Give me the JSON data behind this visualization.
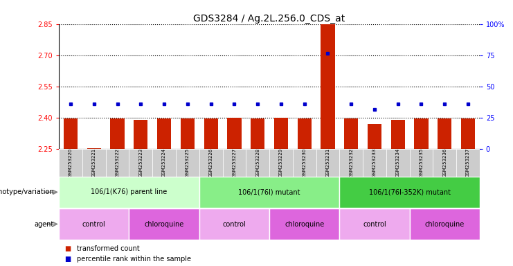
{
  "title": "GDS3284 / Ag.2L.256.0_CDS_at",
  "samples": [
    "GSM253220",
    "GSM253221",
    "GSM253222",
    "GSM253223",
    "GSM253224",
    "GSM253225",
    "GSM253226",
    "GSM253227",
    "GSM253228",
    "GSM253229",
    "GSM253230",
    "GSM253231",
    "GSM253232",
    "GSM253233",
    "GSM253234",
    "GSM253235",
    "GSM253236",
    "GSM253237"
  ],
  "bar_values": [
    2.395,
    2.255,
    2.395,
    2.39,
    2.395,
    2.395,
    2.395,
    2.4,
    2.395,
    2.4,
    2.395,
    2.87,
    2.395,
    2.37,
    2.39,
    2.395,
    2.395,
    2.395
  ],
  "dot_values": [
    2.465,
    2.465,
    2.465,
    2.465,
    2.465,
    2.465,
    2.465,
    2.465,
    2.465,
    2.465,
    2.465,
    2.71,
    2.465,
    2.44,
    2.465,
    2.465,
    2.465,
    2.465
  ],
  "ymin": 2.25,
  "ymax": 2.85,
  "yticks": [
    2.25,
    2.4,
    2.55,
    2.7,
    2.85
  ],
  "right_yticks": [
    0,
    25,
    50,
    75,
    100
  ],
  "bar_color": "#cc2200",
  "dot_color": "#0000cc",
  "genotype_groups": [
    {
      "label": "106/1(K76) parent line",
      "start": 0,
      "end": 5,
      "color": "#ccffcc"
    },
    {
      "label": "106/1(76I) mutant",
      "start": 6,
      "end": 11,
      "color": "#88ee88"
    },
    {
      "label": "106/1(76I-352K) mutant",
      "start": 12,
      "end": 17,
      "color": "#44cc44"
    }
  ],
  "agent_groups": [
    {
      "label": "control",
      "start": 0,
      "end": 2,
      "color": "#eeaaee"
    },
    {
      "label": "chloroquine",
      "start": 3,
      "end": 5,
      "color": "#dd66dd"
    },
    {
      "label": "control",
      "start": 6,
      "end": 8,
      "color": "#eeaaee"
    },
    {
      "label": "chloroquine",
      "start": 9,
      "end": 11,
      "color": "#dd66dd"
    },
    {
      "label": "control",
      "start": 12,
      "end": 14,
      "color": "#eeaaee"
    },
    {
      "label": "chloroquine",
      "start": 15,
      "end": 17,
      "color": "#dd66dd"
    }
  ],
  "legend_items": [
    {
      "label": "transformed count",
      "color": "#cc2200"
    },
    {
      "label": "percentile rank within the sample",
      "color": "#0000cc"
    }
  ],
  "xtick_bg": "#cccccc",
  "bg_color": "#ffffff"
}
